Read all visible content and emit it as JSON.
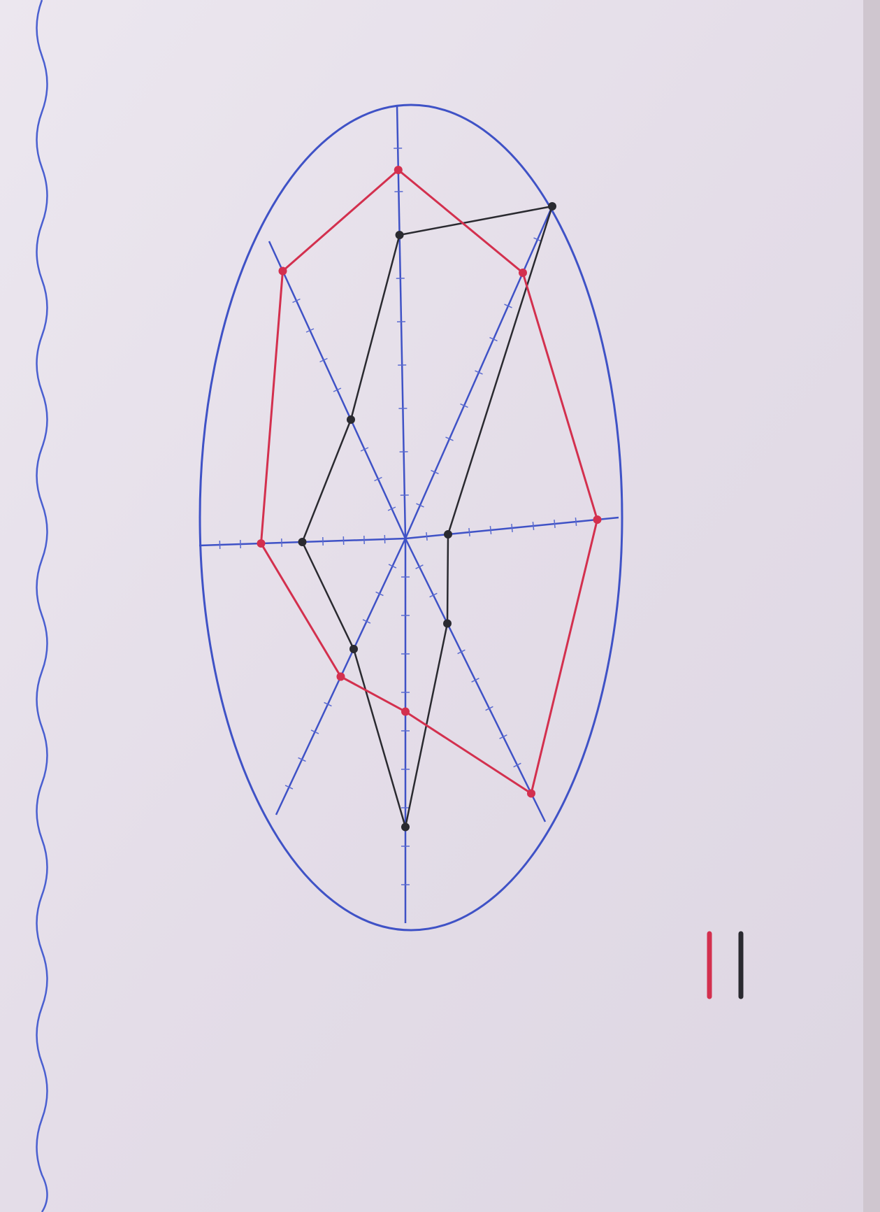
{
  "chart_data": {
    "type": "radar",
    "categories": [
      null,
      null,
      null,
      null,
      null,
      null,
      null,
      null
    ],
    "rlim": [
      0,
      10
    ],
    "series": [
      {
        "color": "#2a2a30",
        "values": [
          7,
          10,
          2,
          3,
          7.5,
          4,
          5,
          4
        ]
      },
      {
        "color": "#d3304e",
        "values": [
          8.5,
          8,
          9,
          9,
          4.5,
          5,
          7,
          9
        ]
      }
    ]
  }
}
